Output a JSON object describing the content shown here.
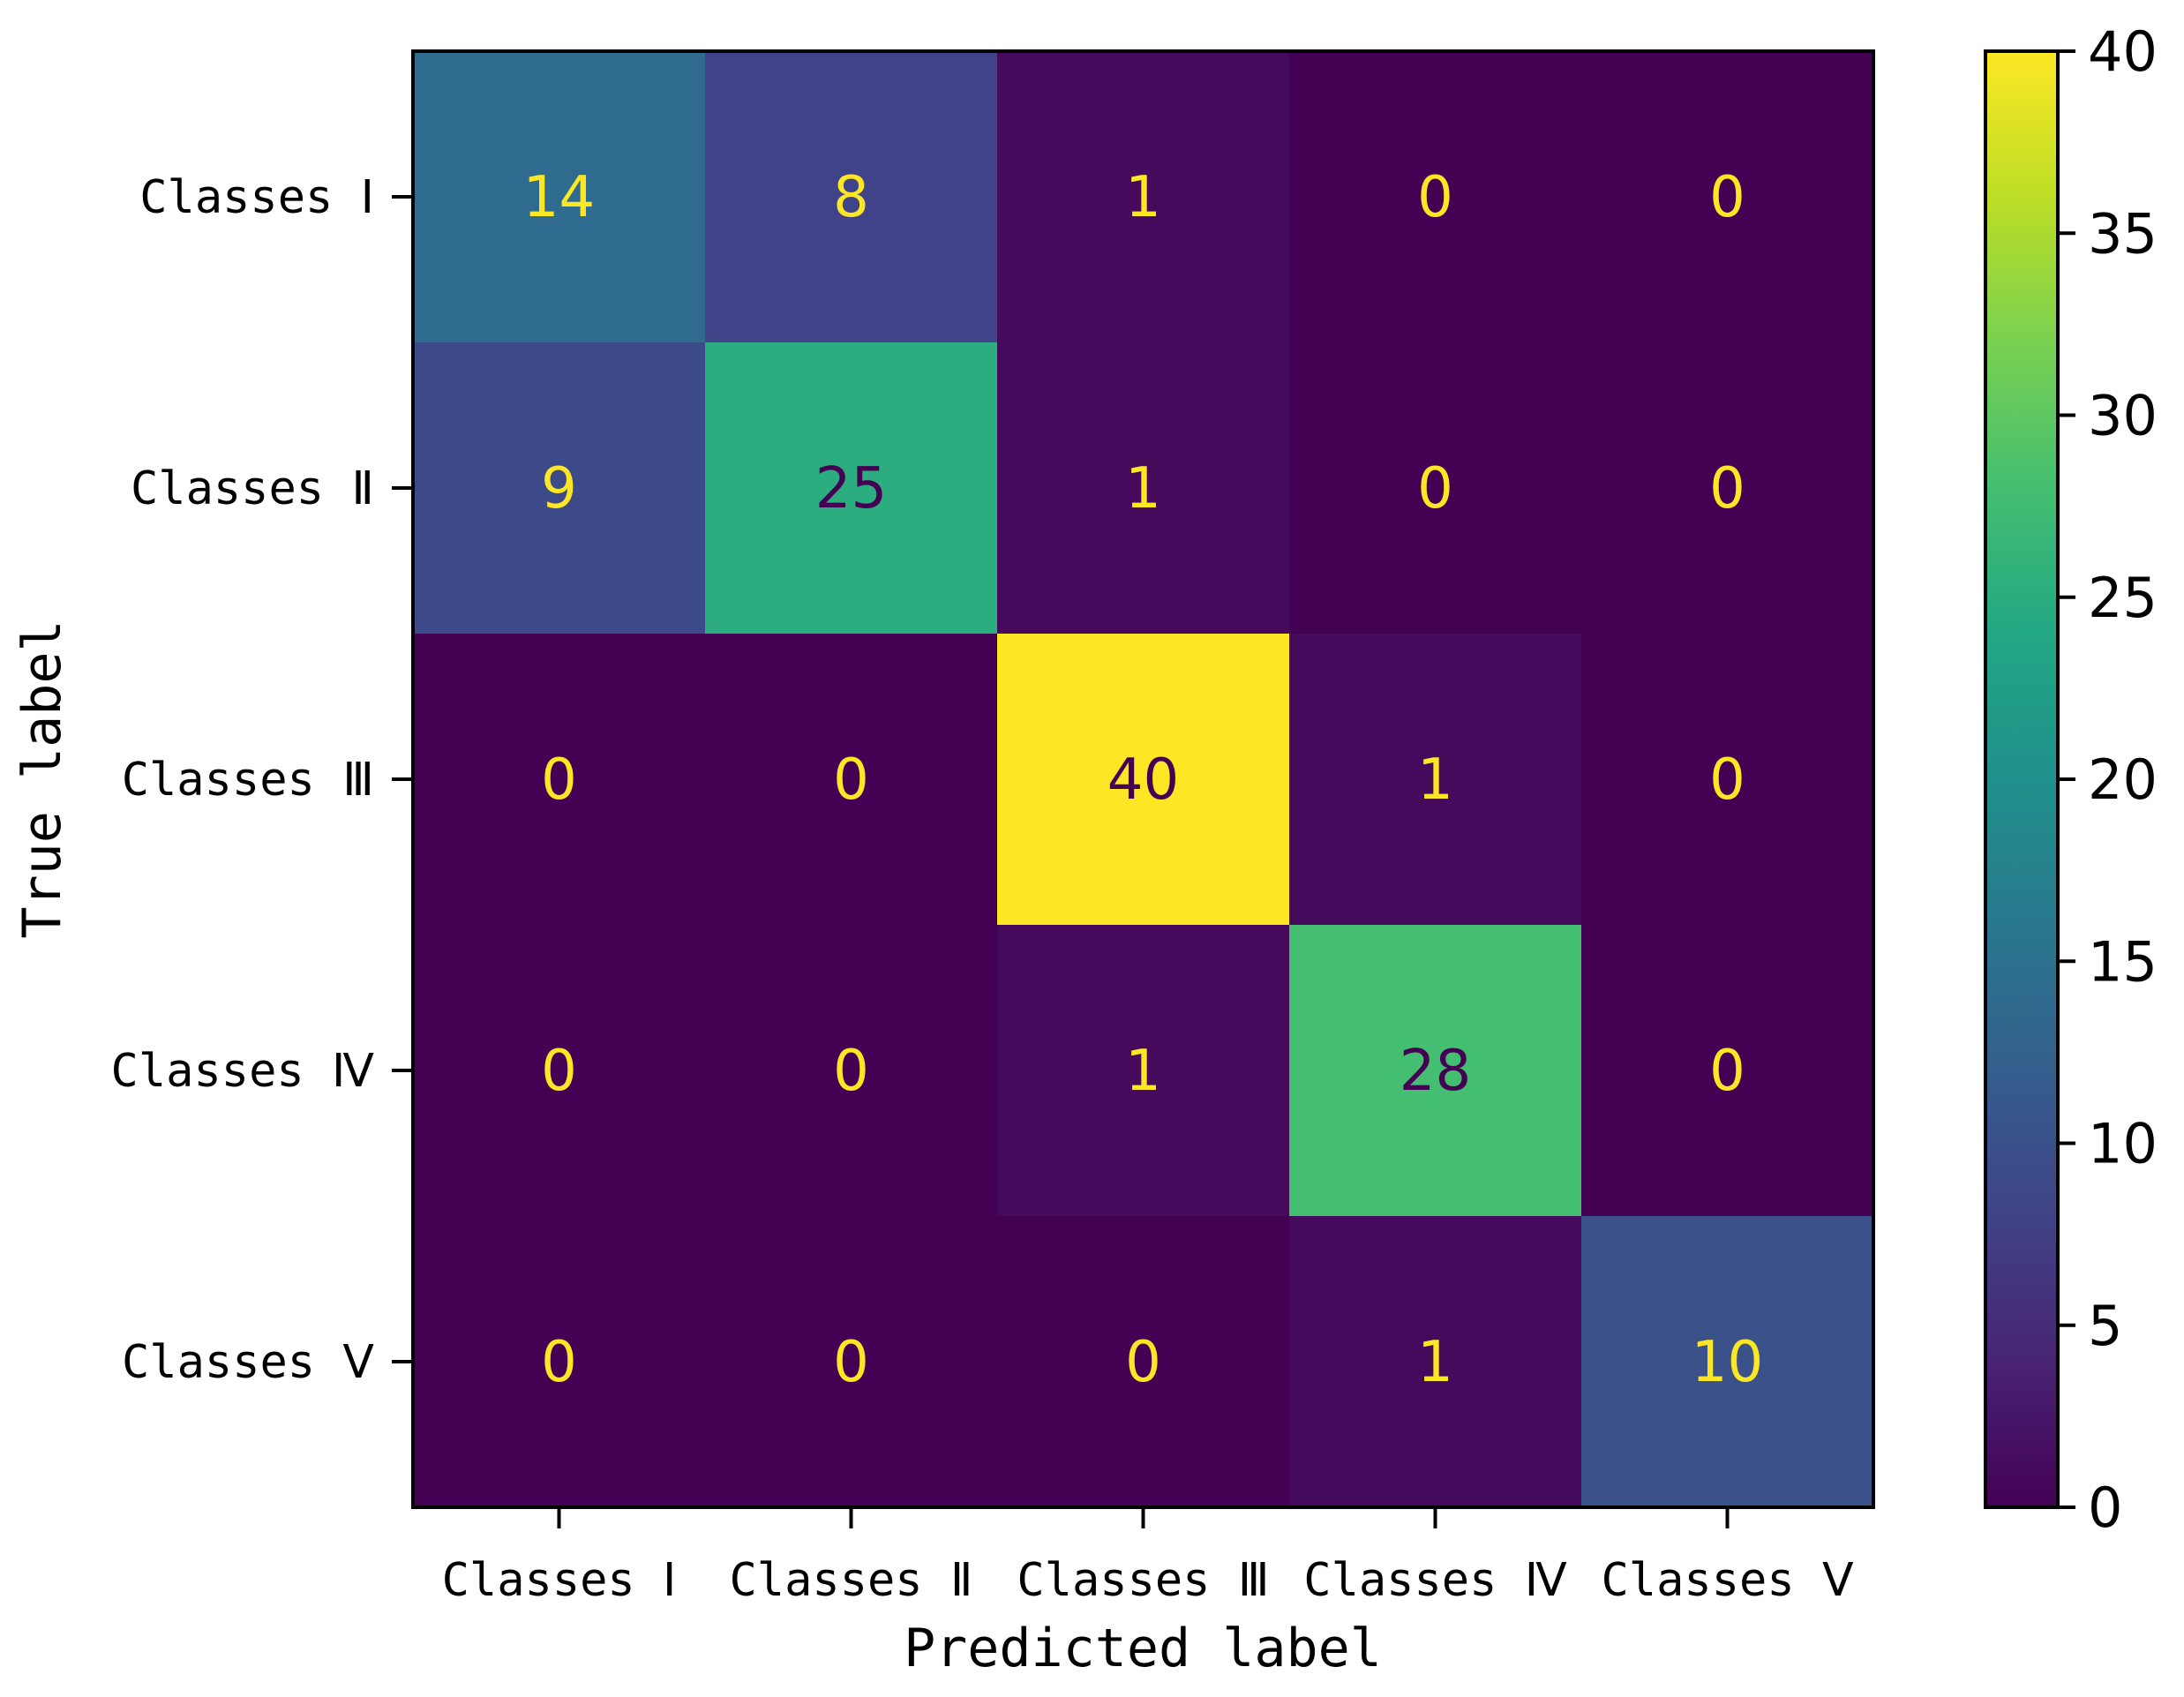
{
  "chart_data": {
    "type": "heatmap",
    "title": "",
    "xlabel": "Predicted label",
    "ylabel": "True label",
    "x_categories": [
      "Classes  Ⅰ",
      "Classes  Ⅱ",
      "Classes  Ⅲ",
      "Classes  Ⅳ",
      "Classes  Ⅴ"
    ],
    "y_categories": [
      "Classes  Ⅰ",
      "Classes  Ⅱ",
      "Classes  Ⅲ",
      "Classes  Ⅳ",
      "Classes  Ⅴ"
    ],
    "matrix": [
      [
        14,
        8,
        1,
        0,
        0
      ],
      [
        9,
        25,
        1,
        0,
        0
      ],
      [
        0,
        0,
        40,
        1,
        0
      ],
      [
        0,
        0,
        1,
        28,
        0
      ],
      [
        0,
        0,
        0,
        1,
        10
      ]
    ],
    "colormap": "viridis",
    "colorbar": {
      "range": [
        0,
        40
      ],
      "ticks": [
        0,
        5,
        10,
        15,
        20,
        25,
        30,
        35,
        40
      ]
    },
    "grid": false,
    "colors": {
      "text_on_dark": "#fde725",
      "text_on_light": "#440154"
    }
  }
}
